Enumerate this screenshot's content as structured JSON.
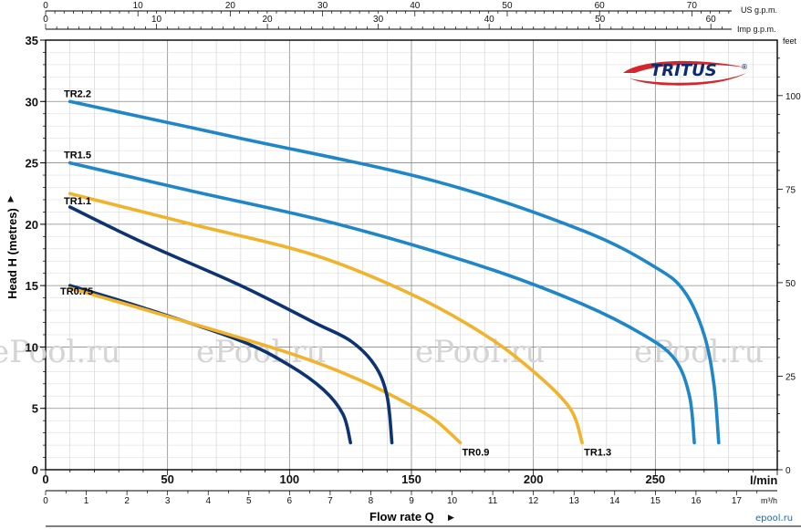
{
  "chart_data": {
    "type": "line",
    "brand": "TRITUS",
    "brand_mark": "®",
    "ylabel": "Head H  (metres)",
    "xlabel": "Flow rate  Q",
    "xunit": "l/min",
    "ylim": [
      0,
      35
    ],
    "xlim": [
      0,
      300
    ],
    "grid": true,
    "y_ticks": [
      "0",
      "5",
      "10",
      "15",
      "20",
      "25",
      "30",
      "35"
    ],
    "x_ticks_lmin": [
      "0",
      "50",
      "100",
      "150",
      "200",
      "250"
    ],
    "x_ticks_m3h": [
      "0",
      "1",
      "2",
      "3",
      "4",
      "5",
      "6",
      "7",
      "8",
      "9",
      "10",
      "11",
      "12",
      "13",
      "14",
      "15",
      "16",
      "17"
    ],
    "m3h_unit": "m³/h",
    "feet_unit": "feet",
    "feet_ticks": [
      "0",
      "25",
      "50",
      "75",
      "100"
    ],
    "us_gpm_unit": "US g.p.m.",
    "us_gpm_ticks": [
      "0",
      "10",
      "20",
      "30",
      "40",
      "50",
      "60",
      "70"
    ],
    "imp_gpm_unit": "Imp g.p.m.",
    "imp_gpm_ticks": [
      "0",
      "10",
      "20",
      "30",
      "40",
      "50",
      "60"
    ],
    "series": [
      {
        "name": "TR0.75",
        "color": "#0d3471",
        "x": [
          10,
          40,
          80,
          100,
          114,
          122,
          125
        ],
        "y": [
          15,
          13.2,
          10.5,
          8.5,
          6.5,
          4.5,
          2.2
        ]
      },
      {
        "name": "TR0.9",
        "color": "#f2b32c",
        "x": [
          10,
          50,
          100,
          130,
          150,
          160,
          170
        ],
        "y": [
          14.8,
          12.5,
          9.5,
          7.2,
          5.2,
          4,
          2.2
        ]
      },
      {
        "name": "TR1.1",
        "color": "#0d3471",
        "x": [
          10,
          40,
          80,
          110,
          125,
          135,
          140,
          142
        ],
        "y": [
          21.4,
          18.5,
          15,
          12,
          10.5,
          8.5,
          6,
          2.2
        ]
      },
      {
        "name": "TR1.3",
        "color": "#f2b32c",
        "x": [
          10,
          60,
          110,
          150,
          180,
          200,
          215,
          220
        ],
        "y": [
          22.5,
          20,
          17.5,
          14.3,
          11,
          8,
          5,
          2.2
        ]
      },
      {
        "name": "TR1.5",
        "color": "#1f86c8",
        "x": [
          10,
          60,
          120,
          180,
          220,
          245,
          258,
          264,
          266
        ],
        "y": [
          25,
          22.7,
          20,
          16.5,
          13.5,
          11,
          9,
          6,
          2.2
        ]
      },
      {
        "name": "TR2.2",
        "color": "#1f86c8",
        "x": [
          10,
          80,
          160,
          220,
          250,
          262,
          270,
          274,
          276
        ],
        "y": [
          30,
          27,
          23.5,
          19.5,
          16.5,
          14.5,
          11,
          7,
          2.2
        ]
      }
    ]
  },
  "watermark": "ePool.ru",
  "corner_logo": "epool.ru"
}
